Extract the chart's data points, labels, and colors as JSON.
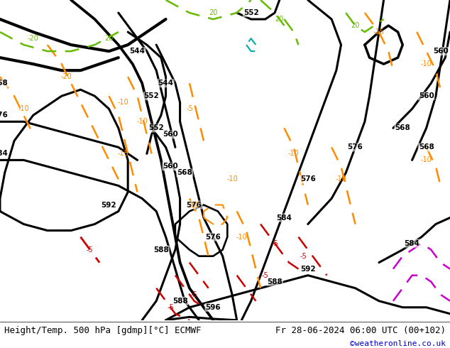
{
  "title_left": "Height/Temp. 500 hPa [gdmp][°C] ECMWF",
  "title_right": "Fr 28-06-2024 06:00 UTC (00+102)",
  "credit": "©weatheronline.co.uk",
  "land_color": "#c8e6a0",
  "ocean_color": "#d0d0d0",
  "mountain_color": "#a8a8a8",
  "border_color": "#808080",
  "coast_color": "#808080",
  "height_color": "#000000",
  "temp_orange": "#ff8c00",
  "temp_red": "#cc0000",
  "temp_green": "#66bb00",
  "temp_cyan": "#00aaaa",
  "temp_magenta": "#cc00cc",
  "label_fontsize": 9,
  "credit_color": "#0000cc",
  "fig_width": 6.34,
  "fig_height": 4.9,
  "dpi": 100,
  "lon_min": -45,
  "lon_max": 50,
  "lat_min": 25,
  "lat_max": 75
}
